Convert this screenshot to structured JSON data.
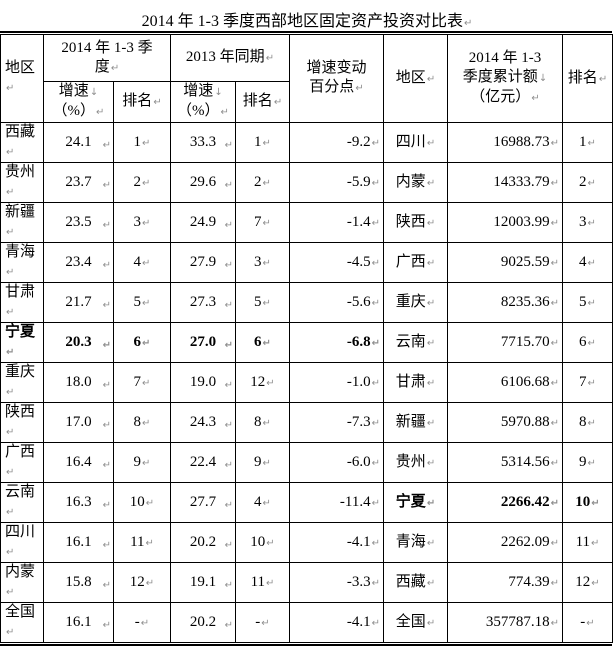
{
  "title": "2014 年 1-3 季度西部地区固定资产投资对比表",
  "marks": {
    "cell_end": "↵",
    "line_break": "↓"
  },
  "colors": {
    "text": "#000000",
    "border": "#000000",
    "mark_gray": "#8f8f8f",
    "background": "#ffffff"
  },
  "table": {
    "header": {
      "region": "地区",
      "q2014_lines": [
        "2014 年 1-3 季",
        "度"
      ],
      "same2013": "2013 年同期",
      "growth_lines": [
        "增速",
        "（%）"
      ],
      "rank": "排名",
      "change_lines": [
        "增速变动",
        "百分点"
      ],
      "region2": "地区",
      "cumulative_lines": [
        "2014 年 1-3",
        "季度累计额",
        "（亿元）"
      ],
      "rank2": "排名"
    },
    "rows": [
      {
        "region": "西藏",
        "g14": "24.1",
        "r14": "1",
        "g13": "33.3",
        "r13": "1",
        "chg": "-9.2",
        "region2": "四川",
        "amt": "16988.73",
        "r2": "1",
        "bold_left": false,
        "bold_right": false
      },
      {
        "region": "贵州",
        "g14": "23.7",
        "r14": "2",
        "g13": "29.6",
        "r13": "2",
        "chg": "-5.9",
        "region2": "内蒙",
        "amt": "14333.79",
        "r2": "2",
        "bold_left": false,
        "bold_right": false
      },
      {
        "region": "新疆",
        "g14": "23.5",
        "r14": "3",
        "g13": "24.9",
        "r13": "7",
        "chg": "-1.4",
        "region2": "陕西",
        "amt": "12003.99",
        "r2": "3",
        "bold_left": false,
        "bold_right": false
      },
      {
        "region": "青海",
        "g14": "23.4",
        "r14": "4",
        "g13": "27.9",
        "r13": "3",
        "chg": "-4.5",
        "region2": "广西",
        "amt": "9025.59",
        "r2": "4",
        "bold_left": false,
        "bold_right": false
      },
      {
        "region": "甘肃",
        "g14": "21.7",
        "r14": "5",
        "g13": "27.3",
        "r13": "5",
        "chg": "-5.6",
        "region2": "重庆",
        "amt": "8235.36",
        "r2": "5",
        "bold_left": false,
        "bold_right": false
      },
      {
        "region": "宁夏",
        "g14": "20.3",
        "r14": "6",
        "g13": "27.0",
        "r13": "6",
        "chg": "-6.8",
        "region2": "云南",
        "amt": "7715.70",
        "r2": "6",
        "bold_left": true,
        "bold_right": false
      },
      {
        "region": "重庆",
        "g14": "18.0",
        "r14": "7",
        "g13": "19.0",
        "r13": "12",
        "chg": "-1.0",
        "region2": "甘肃",
        "amt": "6106.68",
        "r2": "7",
        "bold_left": false,
        "bold_right": false
      },
      {
        "region": "陕西",
        "g14": "17.0",
        "r14": "8",
        "g13": "24.3",
        "r13": "8",
        "chg": "-7.3",
        "region2": "新疆",
        "amt": "5970.88",
        "r2": "8",
        "bold_left": false,
        "bold_right": false
      },
      {
        "region": "广西",
        "g14": "16.4",
        "r14": "9",
        "g13": "22.4",
        "r13": "9",
        "chg": "-6.0",
        "region2": "贵州",
        "amt": "5314.56",
        "r2": "9",
        "bold_left": false,
        "bold_right": false
      },
      {
        "region": "云南",
        "g14": "16.3",
        "r14": "10",
        "g13": "27.7",
        "r13": "4",
        "chg": "-11.4",
        "region2": "宁夏",
        "amt": "2266.42",
        "r2": "10",
        "bold_left": false,
        "bold_right": true
      },
      {
        "region": "四川",
        "g14": "16.1",
        "r14": "11",
        "g13": "20.2",
        "r13": "10",
        "chg": "-4.1",
        "region2": "青海",
        "amt": "2262.09",
        "r2": "11",
        "bold_left": false,
        "bold_right": false
      },
      {
        "region": "内蒙",
        "g14": "15.8",
        "r14": "12",
        "g13": "19.1",
        "r13": "11",
        "chg": "-3.3",
        "region2": "西藏",
        "amt": "774.39",
        "r2": "12",
        "bold_left": false,
        "bold_right": false
      },
      {
        "region": "全国",
        "g14": "16.1",
        "r14": "-",
        "g13": "20.2",
        "r13": "-",
        "chg": "-4.1",
        "region2": "全国",
        "amt": "357787.18",
        "r2": "-",
        "bold_left": false,
        "bold_right": false
      }
    ]
  },
  "chart_data": {
    "type": "table",
    "title": "2014 年 1-3 季度西部地区固定资产投资对比表",
    "columns": [
      "地区",
      "2014年1-3季度 增速（%）",
      "2014年1-3季度 排名",
      "2013年同期 增速（%）",
      "2013年同期 排名",
      "增速变动百分点",
      "地区",
      "2014年1-3季度累计额（亿元）",
      "排名"
    ],
    "rows": [
      [
        "西藏",
        "24.1",
        "1",
        "33.3",
        "1",
        "-9.2",
        "四川",
        "16988.73",
        "1"
      ],
      [
        "贵州",
        "23.7",
        "2",
        "29.6",
        "2",
        "-5.9",
        "内蒙",
        "14333.79",
        "2"
      ],
      [
        "新疆",
        "23.5",
        "3",
        "24.9",
        "7",
        "-1.4",
        "陕西",
        "12003.99",
        "3"
      ],
      [
        "青海",
        "23.4",
        "4",
        "27.9",
        "3",
        "-4.5",
        "广西",
        "9025.59",
        "4"
      ],
      [
        "甘肃",
        "21.7",
        "5",
        "27.3",
        "5",
        "-5.6",
        "重庆",
        "8235.36",
        "5"
      ],
      [
        "宁夏",
        "20.3",
        "6",
        "27.0",
        "6",
        "-6.8",
        "云南",
        "7715.70",
        "6"
      ],
      [
        "重庆",
        "18.0",
        "7",
        "19.0",
        "12",
        "-1.0",
        "甘肃",
        "6106.68",
        "7"
      ],
      [
        "陕西",
        "17.0",
        "8",
        "24.3",
        "8",
        "-7.3",
        "新疆",
        "5970.88",
        "8"
      ],
      [
        "广西",
        "16.4",
        "9",
        "22.4",
        "9",
        "-6.0",
        "贵州",
        "5314.56",
        "9"
      ],
      [
        "云南",
        "16.3",
        "10",
        "27.7",
        "4",
        "-11.4",
        "宁夏",
        "2266.42",
        "10"
      ],
      [
        "四川",
        "16.1",
        "11",
        "20.2",
        "10",
        "-4.1",
        "青海",
        "2262.09",
        "11"
      ],
      [
        "内蒙",
        "15.8",
        "12",
        "19.1",
        "11",
        "-3.3",
        "西藏",
        "774.39",
        "12"
      ],
      [
        "全国",
        "16.1",
        "-",
        "20.2",
        "-",
        "-4.1",
        "全国",
        "357787.18",
        "-"
      ]
    ]
  }
}
